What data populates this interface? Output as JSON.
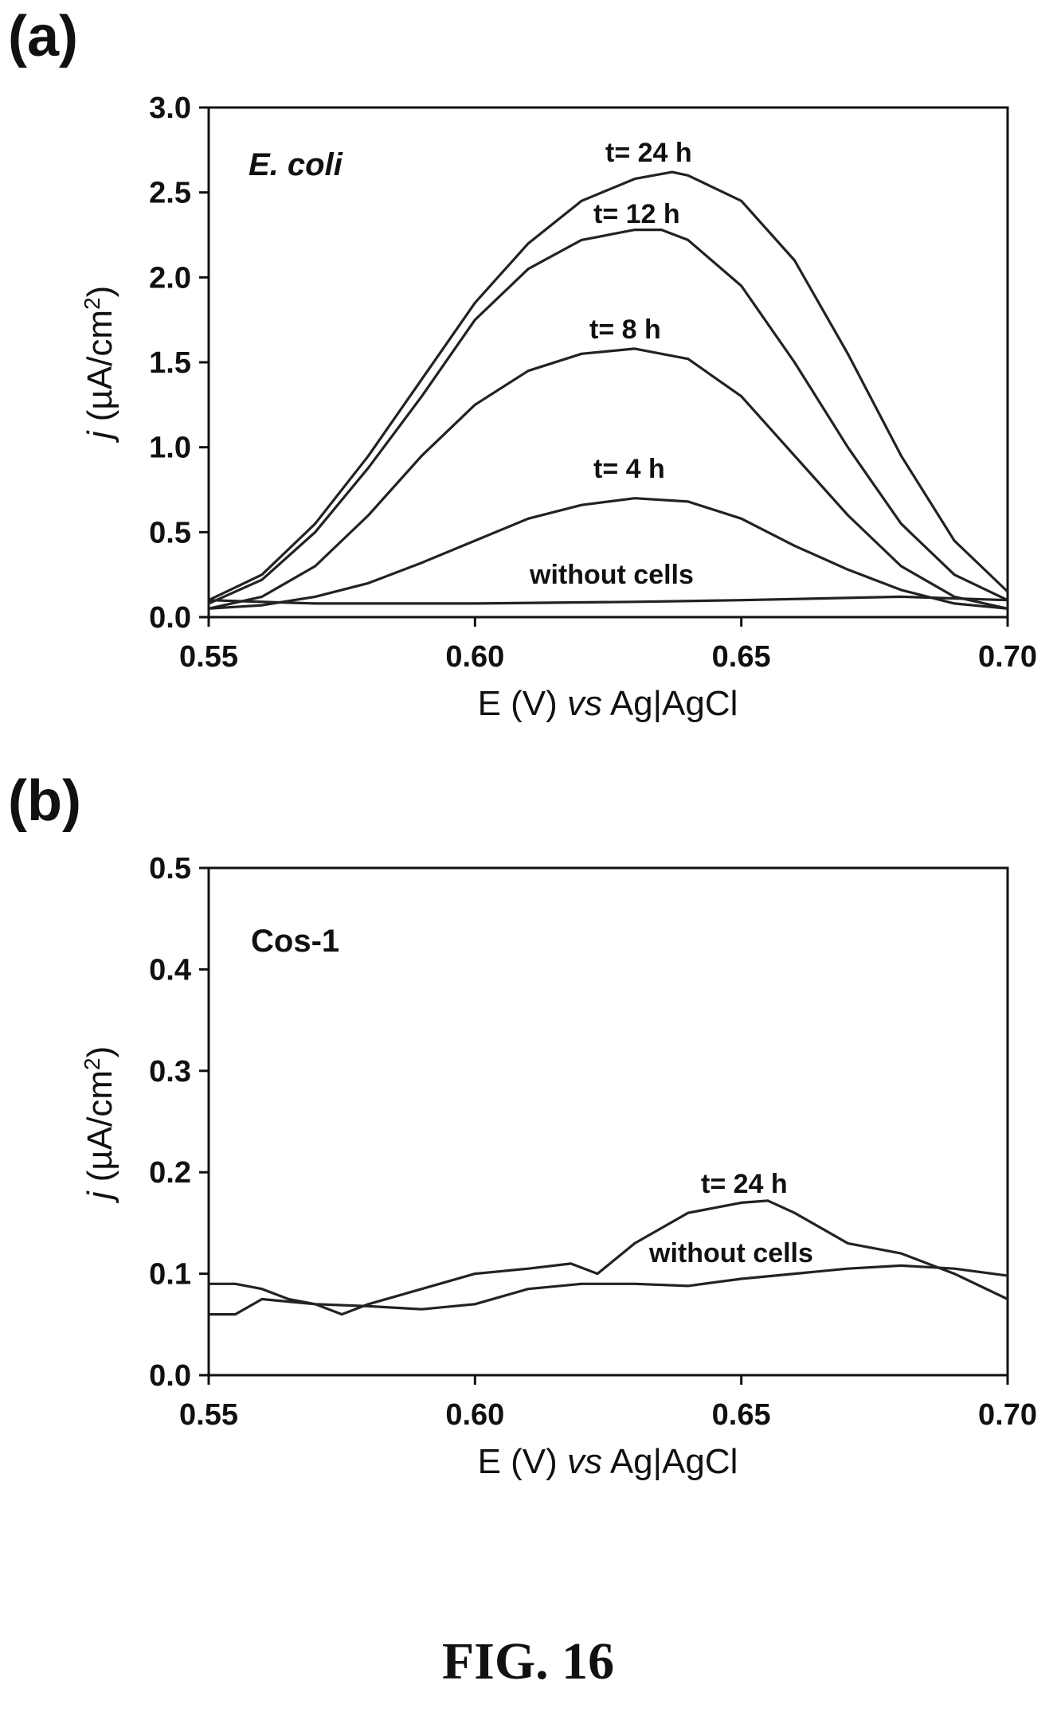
{
  "figure_label": "FIG. 16",
  "chart_data": [
    {
      "panel": "(a)",
      "type": "line",
      "inset_label": "E. coli",
      "xlabel": "E (V) vs Ag|AgCl",
      "ylabel": "j (µA/cm²)",
      "xlim": [
        0.55,
        0.7
      ],
      "ylim": [
        0.0,
        3.0
      ],
      "xticks": [
        "0.55",
        "0.60",
        "0.65",
        "0.70"
      ],
      "yticks": [
        "0.0",
        "0.5",
        "1.0",
        "1.5",
        "2.0",
        "2.5",
        "3.0"
      ],
      "series": [
        {
          "label": "t= 24 h",
          "x": [
            0.55,
            0.56,
            0.57,
            0.58,
            0.59,
            0.6,
            0.61,
            0.62,
            0.63,
            0.637,
            0.64,
            0.65,
            0.66,
            0.67,
            0.68,
            0.69,
            0.7
          ],
          "y": [
            0.1,
            0.25,
            0.55,
            0.95,
            1.4,
            1.85,
            2.2,
            2.45,
            2.58,
            2.62,
            2.6,
            2.45,
            2.1,
            1.55,
            0.95,
            0.45,
            0.15
          ]
        },
        {
          "label": "t= 12 h",
          "x": [
            0.55,
            0.56,
            0.57,
            0.58,
            0.59,
            0.6,
            0.61,
            0.62,
            0.63,
            0.635,
            0.64,
            0.65,
            0.66,
            0.67,
            0.68,
            0.69,
            0.7
          ],
          "y": [
            0.08,
            0.22,
            0.5,
            0.88,
            1.3,
            1.75,
            2.05,
            2.22,
            2.28,
            2.28,
            2.22,
            1.95,
            1.5,
            1.0,
            0.55,
            0.25,
            0.1
          ]
        },
        {
          "label": "t= 8 h",
          "x": [
            0.55,
            0.56,
            0.57,
            0.58,
            0.59,
            0.6,
            0.61,
            0.62,
            0.63,
            0.64,
            0.65,
            0.66,
            0.67,
            0.68,
            0.69,
            0.7
          ],
          "y": [
            0.05,
            0.12,
            0.3,
            0.6,
            0.95,
            1.25,
            1.45,
            1.55,
            1.58,
            1.52,
            1.3,
            0.95,
            0.6,
            0.3,
            0.12,
            0.05
          ]
        },
        {
          "label": "t= 4 h",
          "x": [
            0.55,
            0.56,
            0.57,
            0.58,
            0.59,
            0.6,
            0.61,
            0.62,
            0.63,
            0.64,
            0.65,
            0.66,
            0.67,
            0.68,
            0.69,
            0.7
          ],
          "y": [
            0.05,
            0.07,
            0.12,
            0.2,
            0.32,
            0.45,
            0.58,
            0.66,
            0.7,
            0.68,
            0.58,
            0.42,
            0.28,
            0.16,
            0.08,
            0.05
          ]
        },
        {
          "label": "without cells",
          "x": [
            0.55,
            0.57,
            0.6,
            0.63,
            0.65,
            0.68,
            0.7
          ],
          "y": [
            0.1,
            0.08,
            0.08,
            0.09,
            0.1,
            0.12,
            0.1
          ]
        }
      ]
    },
    {
      "panel": "(b)",
      "type": "line",
      "inset_label": "Cos-1",
      "xlabel": "E (V) vs Ag|AgCl",
      "ylabel": "j (µA/cm²)",
      "xlim": [
        0.55,
        0.7
      ],
      "ylim": [
        0.0,
        0.5
      ],
      "xticks": [
        "0.55",
        "0.60",
        "0.65",
        "0.70"
      ],
      "yticks": [
        "0.0",
        "0.1",
        "0.2",
        "0.3",
        "0.4",
        "0.5"
      ],
      "series": [
        {
          "label": "t= 24 h",
          "x": [
            0.55,
            0.555,
            0.56,
            0.565,
            0.57,
            0.575,
            0.58,
            0.59,
            0.6,
            0.61,
            0.618,
            0.623,
            0.63,
            0.64,
            0.65,
            0.655,
            0.66,
            0.67,
            0.68,
            0.69,
            0.7
          ],
          "y": [
            0.09,
            0.09,
            0.085,
            0.075,
            0.07,
            0.06,
            0.07,
            0.085,
            0.1,
            0.105,
            0.11,
            0.1,
            0.13,
            0.16,
            0.17,
            0.172,
            0.16,
            0.13,
            0.12,
            0.1,
            0.075
          ]
        },
        {
          "label": "without cells",
          "x": [
            0.55,
            0.555,
            0.56,
            0.57,
            0.58,
            0.59,
            0.6,
            0.61,
            0.62,
            0.63,
            0.64,
            0.65,
            0.66,
            0.67,
            0.68,
            0.69,
            0.7
          ],
          "y": [
            0.06,
            0.06,
            0.075,
            0.07,
            0.068,
            0.065,
            0.07,
            0.085,
            0.09,
            0.09,
            0.088,
            0.095,
            0.1,
            0.105,
            0.108,
            0.105,
            0.098
          ]
        }
      ]
    }
  ]
}
